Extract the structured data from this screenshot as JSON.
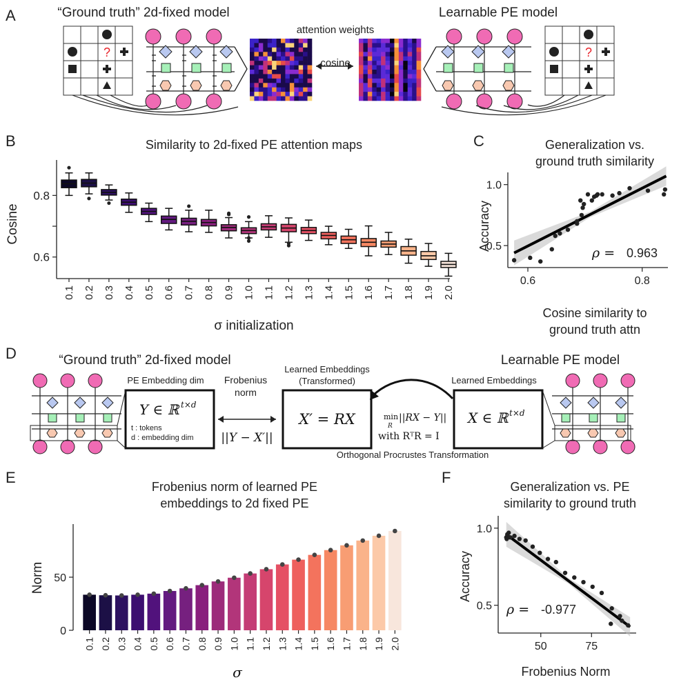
{
  "panels": {
    "A": "A",
    "B": "B",
    "C": "C",
    "D": "D",
    "E": "E",
    "F": "F"
  },
  "panelA": {
    "left_title": "“Ground truth” 2d-fixed model",
    "right_title": "Learnable PE model",
    "attn_label": "attention weights",
    "cosine_label": "cosine",
    "question_mark": "?"
  },
  "panelD": {
    "left_title": "“Ground truth” 2d-fixed model",
    "right_title": "Learnable PE model",
    "pe_dim_label": "PE Embedding dim",
    "y_formula": "Y ∈ ℝ",
    "y_sup": "t×d",
    "tokens_note": "t : tokens",
    "dim_note": "d : embedding dim",
    "frob_label_1": "Frobenius",
    "frob_label_2": "norm",
    "frob_formula": "||Y − X′||",
    "transformed_label_1": "Learned Embeddings",
    "transformed_label_2": "(Transformed)",
    "xprime_formula": "X′ = RX",
    "min_word": "min",
    "min_sub": "R",
    "min_expr": "||RX − Y||",
    "with_text": "with  RᵀR = I",
    "learned_label": "Learned Embeddings",
    "x_formula": "X ∈ ℝ",
    "x_sup": "t×d",
    "procrustes_label": "Orthogonal Procrustes Transformation"
  },
  "chart_data": [
    {
      "id": "B",
      "type": "box",
      "title": "Similarity to 2d-fixed PE attention maps",
      "xlabel": "σ initialization",
      "ylabel": "Cosine",
      "ylim": [
        0.53,
        0.915
      ],
      "yticks": [
        0.6,
        0.7,
        0.8
      ],
      "ytick_labels": [
        "0.6",
        "",
        "0.8"
      ],
      "categories": [
        "0.1",
        "0.2",
        "0.3",
        "0.4",
        "0.5",
        "0.6",
        "0.7",
        "0.8",
        "0.9",
        "1.0",
        "1.1",
        "1.2",
        "1.3",
        "1.4",
        "1.5",
        "1.6",
        "1.7",
        "1.8",
        "1.9",
        "2.0"
      ],
      "boxes": [
        {
          "q1": 0.825,
          "med": 0.838,
          "q3": 0.85,
          "lo": 0.8,
          "hi": 0.873,
          "out": [
            0.89
          ]
        },
        {
          "q1": 0.828,
          "med": 0.84,
          "q3": 0.852,
          "lo": 0.805,
          "hi": 0.873,
          "out": [
            0.79
          ]
        },
        {
          "q1": 0.801,
          "med": 0.81,
          "q3": 0.819,
          "lo": 0.785,
          "hi": 0.834,
          "out": [
            0.775
          ]
        },
        {
          "q1": 0.768,
          "med": 0.778,
          "q3": 0.788,
          "lo": 0.745,
          "hi": 0.808,
          "out": []
        },
        {
          "q1": 0.738,
          "med": 0.748,
          "q3": 0.758,
          "lo": 0.715,
          "hi": 0.775,
          "out": []
        },
        {
          "q1": 0.709,
          "med": 0.722,
          "q3": 0.733,
          "lo": 0.688,
          "hi": 0.758,
          "out": []
        },
        {
          "q1": 0.704,
          "med": 0.716,
          "q3": 0.726,
          "lo": 0.682,
          "hi": 0.752,
          "out": [
            0.765
          ]
        },
        {
          "q1": 0.701,
          "med": 0.712,
          "q3": 0.722,
          "lo": 0.68,
          "hi": 0.752,
          "out": []
        },
        {
          "q1": 0.685,
          "med": 0.696,
          "q3": 0.705,
          "lo": 0.662,
          "hi": 0.728,
          "out": [
            0.738,
            0.742
          ]
        },
        {
          "q1": 0.676,
          "med": 0.686,
          "q3": 0.695,
          "lo": 0.662,
          "hi": 0.715,
          "out": [
            0.652,
            0.662,
            0.73
          ]
        },
        {
          "q1": 0.688,
          "med": 0.698,
          "q3": 0.708,
          "lo": 0.664,
          "hi": 0.734,
          "out": []
        },
        {
          "q1": 0.682,
          "med": 0.694,
          "q3": 0.706,
          "lo": 0.648,
          "hi": 0.727,
          "out": [
            0.637,
            0.644
          ]
        },
        {
          "q1": 0.676,
          "med": 0.686,
          "q3": 0.696,
          "lo": 0.654,
          "hi": 0.72,
          "out": []
        },
        {
          "q1": 0.659,
          "med": 0.67,
          "q3": 0.68,
          "lo": 0.64,
          "hi": 0.7,
          "out": []
        },
        {
          "q1": 0.644,
          "med": 0.656,
          "q3": 0.668,
          "lo": 0.628,
          "hi": 0.69,
          "out": []
        },
        {
          "q1": 0.634,
          "med": 0.648,
          "q3": 0.66,
          "lo": 0.604,
          "hi": 0.701,
          "out": []
        },
        {
          "q1": 0.632,
          "med": 0.642,
          "q3": 0.652,
          "lo": 0.608,
          "hi": 0.68,
          "out": []
        },
        {
          "q1": 0.606,
          "med": 0.62,
          "q3": 0.634,
          "lo": 0.58,
          "hi": 0.658,
          "out": []
        },
        {
          "q1": 0.592,
          "med": 0.604,
          "q3": 0.618,
          "lo": 0.57,
          "hi": 0.644,
          "out": []
        },
        {
          "q1": 0.566,
          "med": 0.576,
          "q3": 0.586,
          "lo": 0.538,
          "hi": 0.612,
          "out": []
        }
      ]
    },
    {
      "id": "C",
      "type": "scatter",
      "title_lines": [
        "Generalization vs.",
        "ground truth similarity"
      ],
      "xlabel_lines": [
        "Cosine similarity to",
        "ground truth attn"
      ],
      "ylabel": "Accuracy",
      "xlim": [
        0.565,
        0.845
      ],
      "ylim": [
        0.32,
        1.1
      ],
      "xticks": [
        0.6,
        0.8
      ],
      "xtick_labels": [
        "0.6",
        "0.8"
      ],
      "yticks": [
        0.5,
        1.0
      ],
      "ytick_labels": [
        "0.5",
        "1.0"
      ],
      "points": [
        [
          0.576,
          0.38
        ],
        [
          0.604,
          0.4
        ],
        [
          0.622,
          0.37
        ],
        [
          0.642,
          0.47
        ],
        [
          0.648,
          0.58
        ],
        [
          0.656,
          0.6
        ],
        [
          0.67,
          0.63
        ],
        [
          0.686,
          0.68
        ],
        [
          0.686,
          0.7
        ],
        [
          0.694,
          0.75
        ],
        [
          0.696,
          0.81
        ],
        [
          0.698,
          0.84
        ],
        [
          0.712,
          0.87
        ],
        [
          0.716,
          0.9
        ],
        [
          0.72,
          0.91
        ],
        [
          0.722,
          0.92
        ],
        [
          0.748,
          0.91
        ],
        [
          0.778,
          0.97
        ],
        [
          0.81,
          0.95
        ],
        [
          0.838,
          0.92
        ],
        [
          0.84,
          0.96
        ],
        [
          0.692,
          0.87
        ],
        [
          0.705,
          0.92
        ],
        [
          0.73,
          0.92
        ],
        [
          0.76,
          0.93
        ]
      ],
      "fit": [
        [
          0.576,
          0.44
        ],
        [
          0.842,
          1.07
        ]
      ],
      "rho_label": "ρ =",
      "rho_value": "0.963"
    },
    {
      "id": "E",
      "type": "bar",
      "title_lines": [
        "Frobenius norm of learned PE",
        "embeddings to 2d fixed PE"
      ],
      "xlabel": "σ",
      "ylabel": "Norm",
      "ylim": [
        0,
        100
      ],
      "yticks": [
        0,
        50
      ],
      "ytick_labels": [
        "0",
        "50"
      ],
      "categories": [
        "0.1",
        "0.2",
        "0.3",
        "0.4",
        "0.5",
        "0.6",
        "0.7",
        "0.8",
        "0.9",
        "1.0",
        "1.1",
        "1.2",
        "1.3",
        "1.4",
        "1.5",
        "1.6",
        "1.7",
        "1.8",
        "1.9",
        "2.0"
      ],
      "values": [
        33.5,
        33,
        32.8,
        33.5,
        34.5,
        37,
        39.5,
        42.5,
        46,
        49.5,
        53.5,
        57.5,
        62,
        66.5,
        71,
        75.5,
        80,
        84.5,
        89,
        93.5
      ],
      "colors": [
        "#0c0826",
        "#1c1046",
        "#2d1160",
        "#3c0f70",
        "#51127c",
        "#631a80",
        "#76207f",
        "#891f7d",
        "#9c2b7a",
        "#b2357a",
        "#c43c75",
        "#d6456c",
        "#e55064",
        "#ee605d",
        "#f3735d",
        "#f68863",
        "#f89d73",
        "#fab38a",
        "#fcc9a8",
        "#f8e6dc"
      ]
    },
    {
      "id": "F",
      "type": "scatter",
      "title_lines": [
        "Generalization vs. PE",
        "similarity to ground truth"
      ],
      "xlabel": "Frobenius Norm",
      "ylabel": "Accuracy",
      "xlim": [
        29,
        97
      ],
      "ylim": [
        0.32,
        1.08
      ],
      "xticks": [
        50,
        75
      ],
      "xtick_labels": [
        "50",
        "75"
      ],
      "yticks": [
        0.5,
        1.0
      ],
      "ytick_labels": [
        "0.5",
        "1.0"
      ],
      "points": [
        [
          33.5,
          0.96
        ],
        [
          33,
          0.94
        ],
        [
          33.2,
          0.93
        ],
        [
          33.5,
          0.95
        ],
        [
          34.2,
          0.97
        ],
        [
          35,
          0.94
        ],
        [
          37,
          0.95
        ],
        [
          39.5,
          0.93
        ],
        [
          42.5,
          0.92
        ],
        [
          46,
          0.88
        ],
        [
          49.5,
          0.84
        ],
        [
          53.5,
          0.8
        ],
        [
          57.5,
          0.78
        ],
        [
          62,
          0.71
        ],
        [
          66.5,
          0.68
        ],
        [
          71,
          0.65
        ],
        [
          75.5,
          0.62
        ],
        [
          80,
          0.58
        ],
        [
          84.5,
          0.38
        ],
        [
          85,
          0.48
        ],
        [
          89,
          0.43
        ],
        [
          90,
          0.4
        ],
        [
          93,
          0.37
        ]
      ],
      "fit": [
        [
          33,
          0.96
        ],
        [
          94,
          0.36
        ]
      ],
      "rho_label": "ρ =",
      "rho_value": "-0.977"
    }
  ]
}
